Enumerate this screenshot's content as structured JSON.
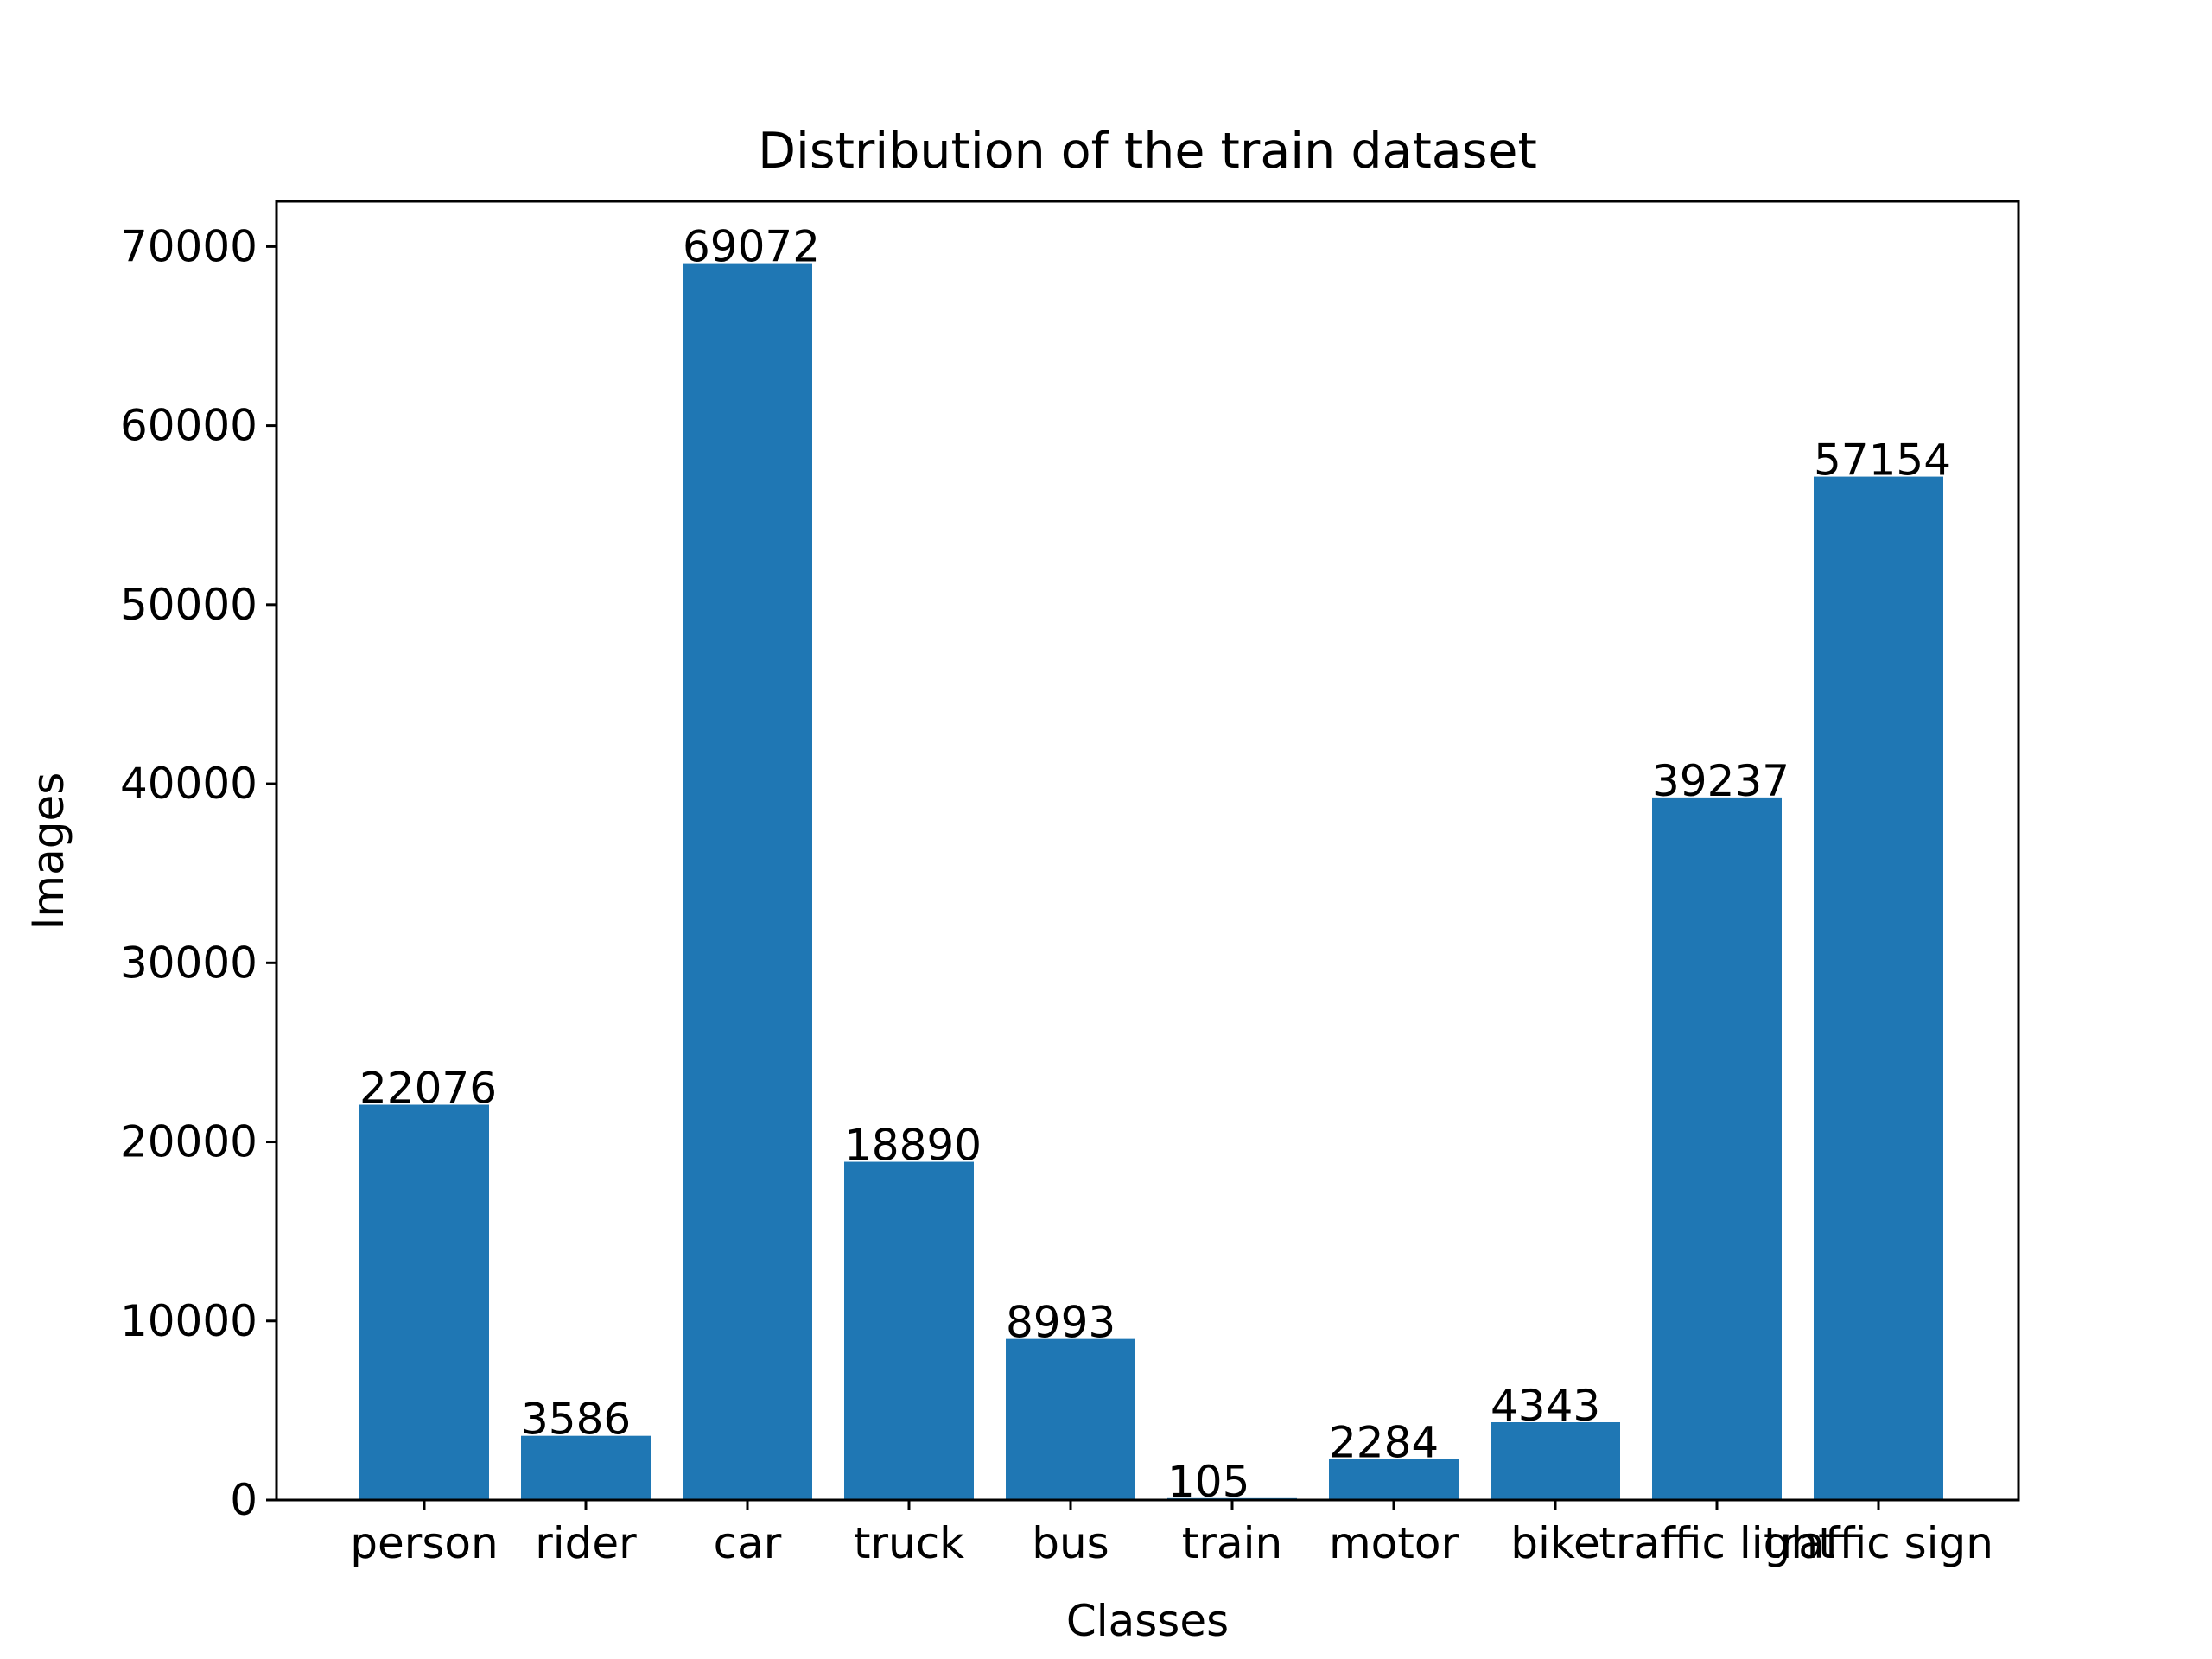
{
  "chart_data": {
    "type": "bar",
    "title": "Distribution of the train dataset",
    "xlabel": "Classes",
    "ylabel": "Images",
    "categories": [
      "person",
      "rider",
      "car",
      "truck",
      "bus",
      "train",
      "motor",
      "bike",
      "traffic light",
      "traffic sign"
    ],
    "values": [
      22076,
      3586,
      69072,
      18890,
      8993,
      105,
      2284,
      4343,
      39237,
      57154
    ],
    "data_labels": [
      "22076",
      "3586",
      "69072",
      "18890",
      "8993",
      "105",
      "2284",
      "4343",
      "39237",
      "57154"
    ],
    "yticks": [
      0,
      10000,
      20000,
      30000,
      40000,
      50000,
      60000,
      70000
    ],
    "ytick_labels": [
      "0",
      "10000",
      "20000",
      "30000",
      "40000",
      "50000",
      "60000",
      "70000"
    ],
    "ylim": [
      0,
      72527
    ],
    "grid": false,
    "legend": "none",
    "bar_color": "#1f77b4"
  }
}
